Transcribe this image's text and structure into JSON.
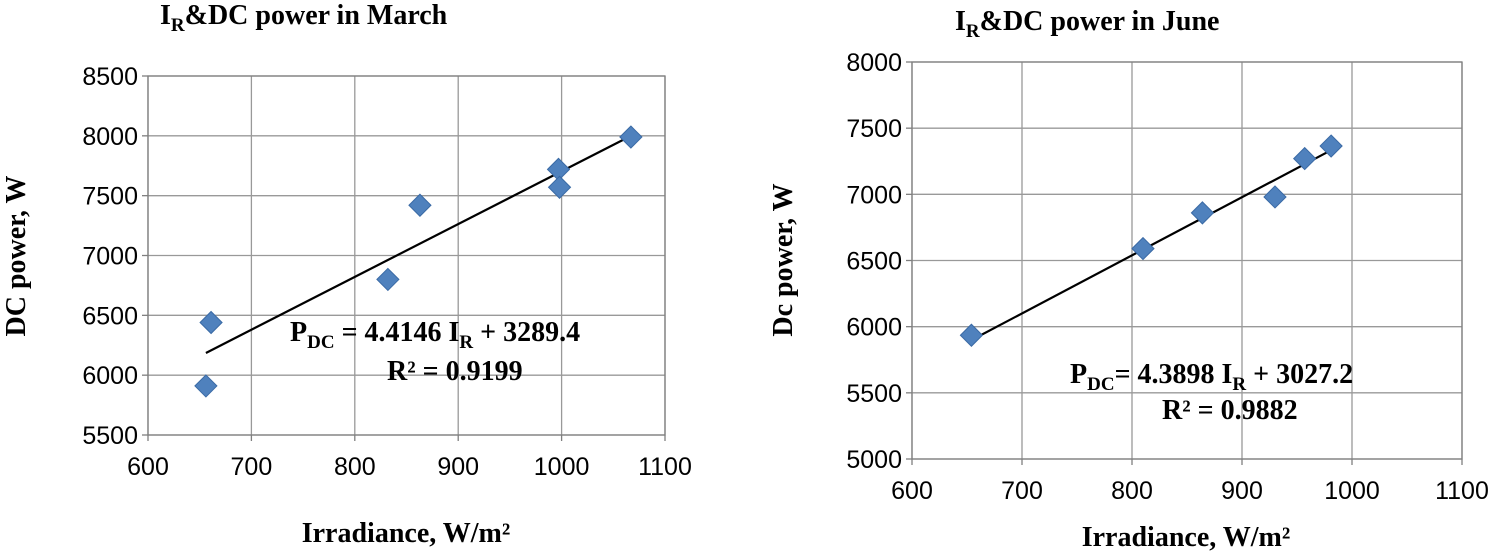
{
  "chart_data": [
    {
      "type": "scatter",
      "title": {
        "main": "I",
        "sub": "R",
        "rest": "&DC power in March"
      },
      "xlabel": "Irradiance, W/m²",
      "ylabel": "DC power,  W",
      "xlim": [
        600,
        1100
      ],
      "ylim": [
        5500,
        8500
      ],
      "xticks": [
        600,
        700,
        800,
        900,
        1000,
        1100
      ],
      "yticks": [
        5500,
        6000,
        6500,
        7000,
        7500,
        8000,
        8500
      ],
      "grid": true,
      "marker": "diamond",
      "marker_color": "#4f81bd",
      "series": [
        {
          "x": [
            656,
            661,
            832,
            863,
            997,
            998,
            1067
          ],
          "y": [
            5910,
            6440,
            6800,
            7420,
            7720,
            7570,
            7990
          ]
        }
      ],
      "trendline": {
        "slope": 4.4146,
        "intercept": 3289.4,
        "x_range": [
          656,
          1067
        ]
      },
      "equation": {
        "p": "P",
        "p_sub": "DC",
        "mid": " = 4.4146 I",
        "i_sub": "R",
        "end": " + 3289.4"
      },
      "r2": "R² = 0.9199"
    },
    {
      "type": "scatter",
      "title": {
        "main": "I",
        "sub": "R",
        "rest": "&DC power in  June"
      },
      "xlabel": "Irradiance, W/m²",
      "ylabel": "Dc power,  W",
      "xlim": [
        600,
        1100
      ],
      "ylim": [
        5000,
        8000
      ],
      "xticks": [
        600,
        700,
        800,
        900,
        1000,
        1100
      ],
      "yticks": [
        5000,
        5500,
        6000,
        6500,
        7000,
        7500,
        8000
      ],
      "grid": true,
      "marker": "diamond",
      "marker_color": "#4f81bd",
      "series": [
        {
          "x": [
            654,
            810,
            864,
            930,
            957,
            981
          ],
          "y": [
            5935,
            6590,
            6860,
            6980,
            7270,
            7365
          ]
        }
      ],
      "trendline": {
        "slope": 4.3898,
        "intercept": 3027.2,
        "x_range": [
          654,
          981
        ]
      },
      "equation": {
        "p": "P",
        "p_sub": "DC",
        "mid": "= 4.3898 I",
        "i_sub": "R",
        "end": " + 3027.2"
      },
      "r2": "R² = 0.9882"
    }
  ]
}
